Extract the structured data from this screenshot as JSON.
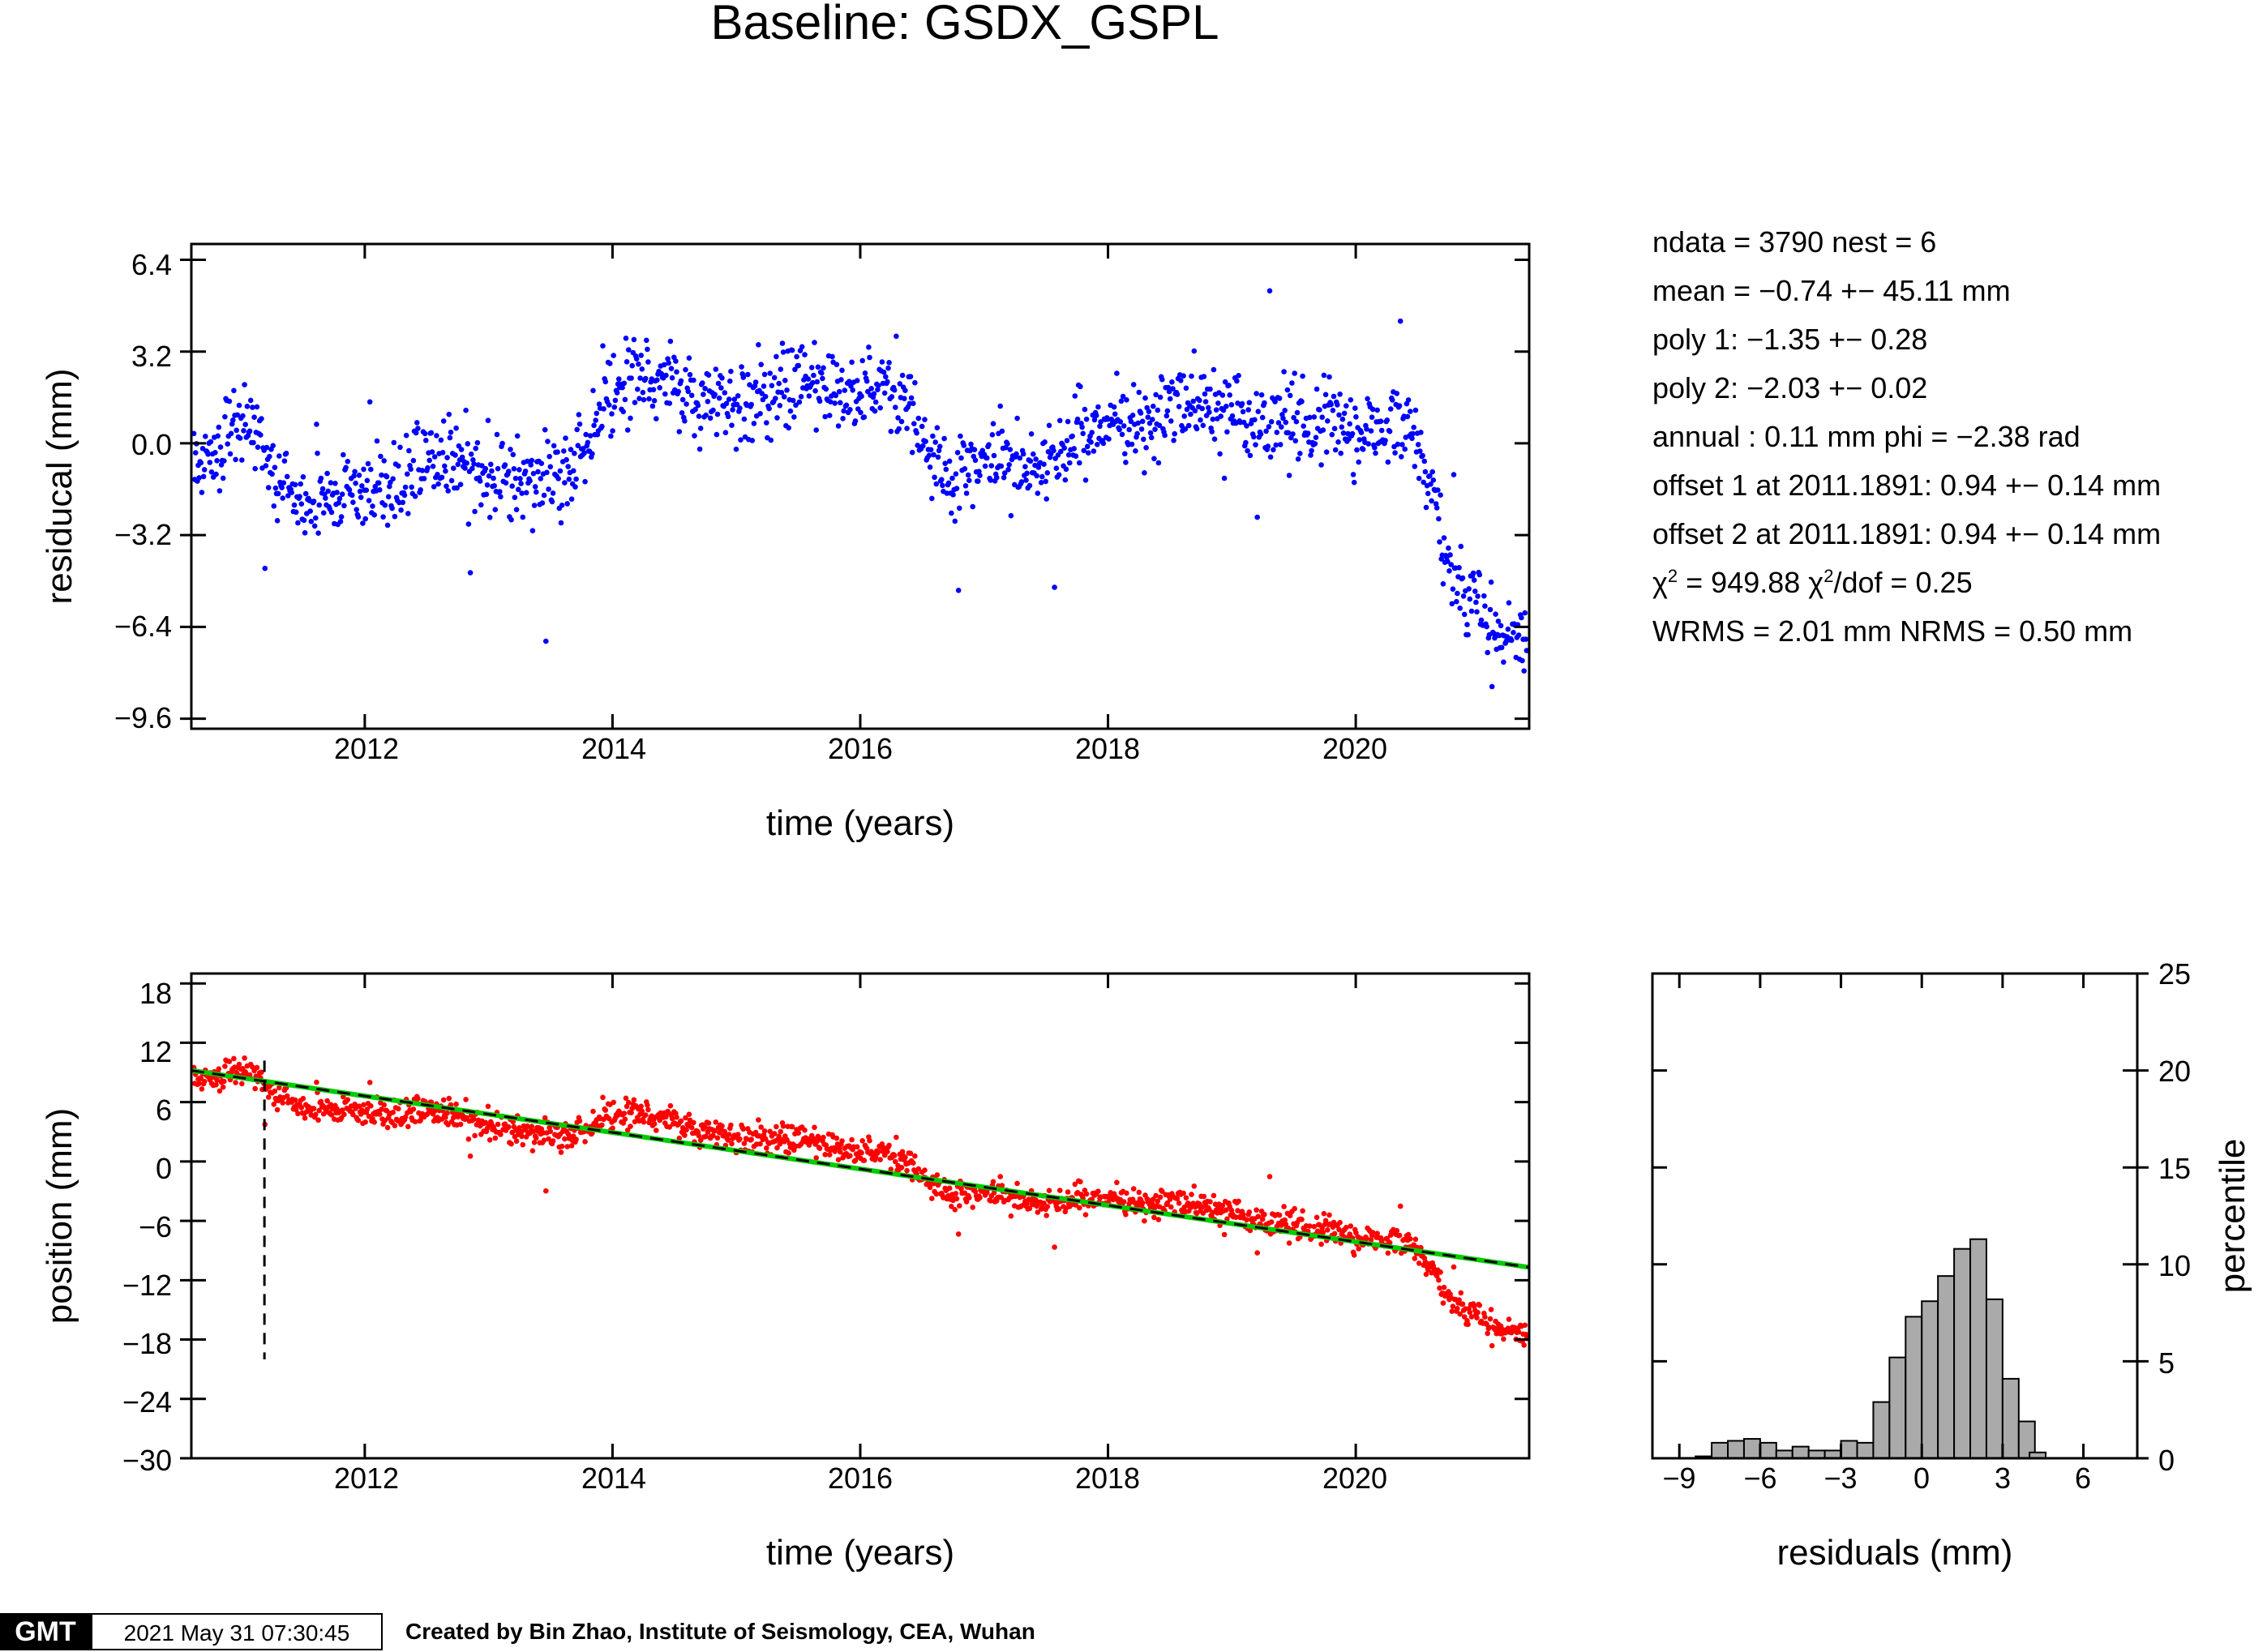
{
  "title": "Baseline: GSDX_GSPL",
  "stats": {
    "line1": "ndata = 3790  nest = 6",
    "line2": "mean = −0.74 +− 45.11 mm",
    "line3": "poly 1: −1.35 +− 0.28",
    "line4": "poly 2: −2.03 +− 0.02",
    "line5": "annual : 0.11 mm  phi = −2.38 rad",
    "line6": "offset 1 at 2011.1891: 0.94 +− 0.14 mm",
    "line7": "offset 2 at 2011.1891: 0.94 +− 0.14 mm",
    "line8a": "χ",
    "line8b": "2",
    "line8c": " = 949.88  χ",
    "line8d": "2",
    "line8e": "/dof = 0.25",
    "line9": "WRMS = 2.01 mm  NRMS = 0.50 mm"
  },
  "footer": {
    "logo": "GMT",
    "timestamp": "2021 May 31 07:30:45",
    "credit": "Created by Bin Zhao, Institute of Seismology, CEA, Wuhan"
  },
  "colors": {
    "residual_points": "#0000ff",
    "position_points": "#ff0000",
    "fit_line": "#000000",
    "model_line": "#00cc00",
    "histogram_fill": "#aaaaaa"
  },
  "chart_data": [
    {
      "type": "scatter",
      "name": "residual-panel",
      "xlabel": "time (years)",
      "ylabel": "residucal (mm)",
      "xlim": [
        2010.6,
        2021.4
      ],
      "ylim": [
        -9.95,
        6.95
      ],
      "xticks": [
        "2012",
        "2014",
        "2016",
        "2018",
        "2020"
      ],
      "yticks": [
        "6.4",
        "3.2",
        "0.0",
        "−3.2",
        "−6.4",
        "−9.6"
      ],
      "trend_knots": {
        "t": [
          2010.65,
          2010.9,
          2011.1,
          2011.3,
          2011.6,
          2011.9,
          2012.3,
          2012.5,
          2012.8,
          2013.2,
          2013.5,
          2013.75,
          2013.95,
          2014.2,
          2014.5,
          2014.7,
          2015.0,
          2015.3,
          2015.6,
          2015.8,
          2016.2,
          2016.4,
          2016.55,
          2016.75,
          2017.0,
          2017.3,
          2017.6,
          2017.75,
          2018.0,
          2018.3,
          2018.6,
          2018.9,
          2019.2,
          2019.6,
          2019.9,
          2020.2,
          2020.45,
          2020.6,
          2020.75,
          2020.9,
          2021.1,
          2021.4
        ],
        "y": [
          -0.8,
          0.4,
          0.8,
          -1.5,
          -2.2,
          -1.6,
          -1.5,
          -0.5,
          -0.7,
          -1.2,
          -1.3,
          -0.5,
          1.6,
          2.2,
          2.6,
          1.4,
          1.5,
          1.9,
          2.3,
          1.7,
          1.9,
          1.6,
          -0.7,
          -1.5,
          -0.6,
          -0.7,
          -0.6,
          0.3,
          0.6,
          0.9,
          1.3,
          1.2,
          0.6,
          1.0,
          0.8,
          0.5,
          0.4,
          -1.2,
          -4.0,
          -5.3,
          -6.5,
          -7.0
        ]
      },
      "points_summary": {
        "n_points": 3790,
        "noise_sd_mm": 0.7
      }
    },
    {
      "type": "scatter",
      "name": "position-panel",
      "xlabel": "time (years)",
      "ylabel": "position (mm)",
      "xlim": [
        2010.6,
        2021.4
      ],
      "ylim": [
        -30,
        19
      ],
      "xticks": [
        "2012",
        "2014",
        "2016",
        "2018",
        "2020"
      ],
      "yticks": [
        "18",
        "12",
        "6",
        "0",
        "−6",
        "−12",
        "−18",
        "−24",
        "−30"
      ],
      "linear_fit": {
        "t0": 2010.6,
        "y0": 9.2,
        "t1": 2021.4,
        "y1": -10.7
      },
      "offset_marker": {
        "t": 2011.19,
        "y_top": 10.2,
        "y_bottom": -20.0
      }
    },
    {
      "type": "bar",
      "name": "residual-histogram",
      "xlabel": "residuals (mm)",
      "ylabel": "percentile",
      "xlim": [
        -10,
        8
      ],
      "ylim": [
        0,
        25
      ],
      "xticks": [
        "−9",
        "−6",
        "−3",
        "0",
        "3",
        "6"
      ],
      "yticks": [
        "0",
        "5",
        "10",
        "15",
        "20",
        "25"
      ],
      "bin_width": 0.6,
      "bin_left_edges": [
        -9.0,
        -8.4,
        -7.8,
        -7.2,
        -6.6,
        -6.0,
        -5.4,
        -4.8,
        -4.2,
        -3.6,
        -3.0,
        -2.4,
        -1.8,
        -1.2,
        -0.6,
        0.0,
        0.6,
        1.2,
        1.8,
        2.4,
        3.0,
        3.6,
        4.0
      ],
      "values": [
        0.0,
        0.1,
        0.8,
        0.9,
        1.0,
        0.8,
        0.4,
        0.6,
        0.4,
        0.4,
        0.9,
        0.8,
        2.9,
        5.2,
        7.3,
        8.1,
        9.4,
        10.8,
        11.3,
        8.2,
        4.1,
        1.9,
        0.3
      ]
    }
  ]
}
